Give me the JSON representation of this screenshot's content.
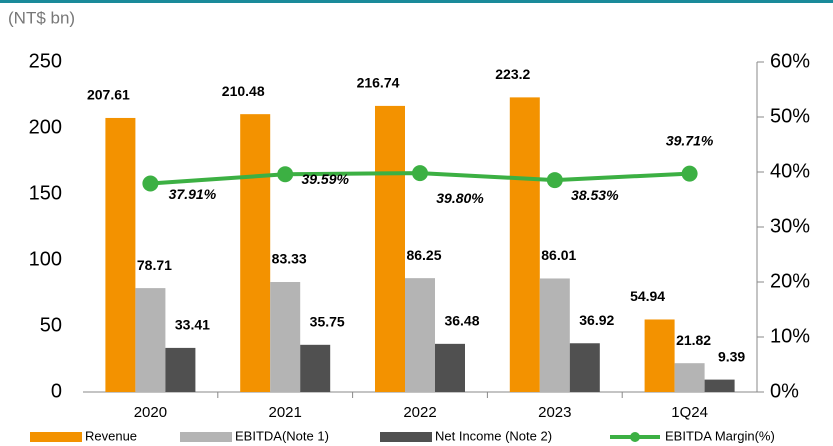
{
  "chart_data": {
    "type": "bar-line",
    "unit_label": "(NT$ bn)",
    "categories": [
      "2020",
      "2021",
      "2022",
      "2023",
      "1Q24"
    ],
    "series": [
      {
        "name": "Revenue",
        "color": "#f39200",
        "values": [
          207.61,
          210.48,
          216.74,
          223.2,
          54.94
        ]
      },
      {
        "name": "EBITDA(Note 1)",
        "color": "#b4b4b4",
        "values": [
          78.71,
          83.33,
          86.25,
          86.01,
          21.82
        ]
      },
      {
        "name": "Net Income (Note 2)",
        "color": "#505050",
        "values": [
          33.41,
          35.75,
          36.48,
          36.92,
          9.39
        ]
      },
      {
        "name": "EBITDA Margin(%)",
        "color": "#3cb043",
        "axis": "y2",
        "type": "line",
        "values": [
          37.91,
          39.59,
          39.8,
          38.53,
          39.71
        ],
        "value_labels": [
          "37.91%",
          "39.59%",
          "39.80%",
          "38.53%",
          "39.71%"
        ]
      }
    ],
    "ylim": [
      0,
      250
    ],
    "yticks": [
      0,
      50,
      100,
      150,
      200,
      250
    ],
    "y2lim": [
      0,
      60
    ],
    "y2ticks": [
      {
        "value": 0,
        "label": "0%"
      },
      {
        "value": 10,
        "label": "10%"
      },
      {
        "value": 20,
        "label": "20%"
      },
      {
        "value": 30,
        "label": "30%"
      },
      {
        "value": 40,
        "label": "40%"
      },
      {
        "value": 50,
        "label": "50%"
      },
      {
        "value": 60,
        "label": "60%"
      }
    ],
    "legend": "bottom"
  }
}
